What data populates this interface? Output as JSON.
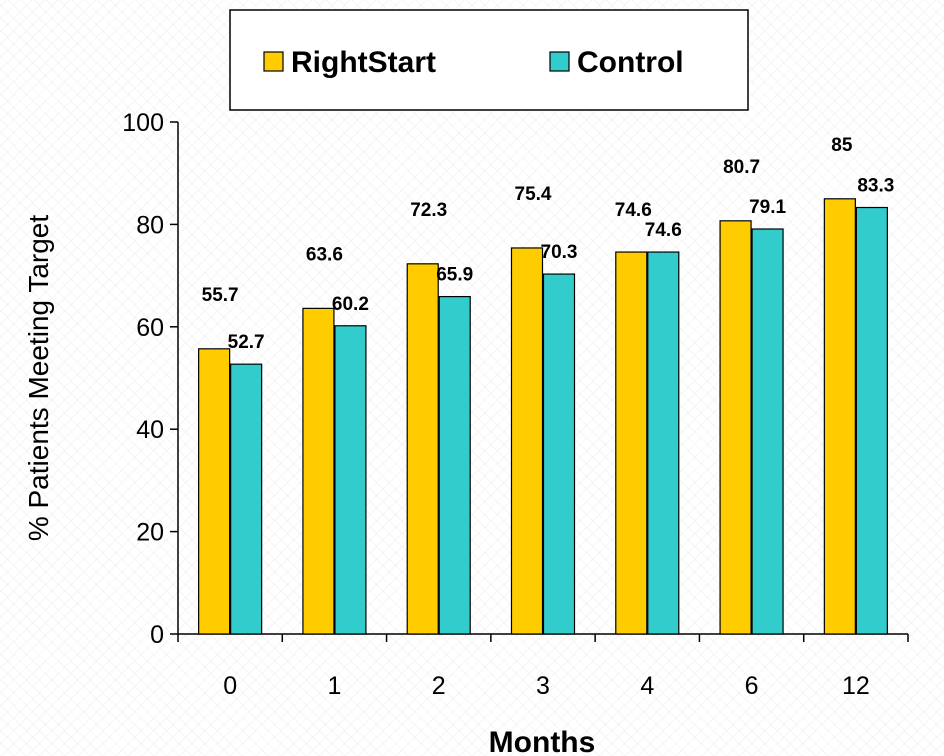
{
  "chart_data": {
    "type": "bar",
    "title": "",
    "xlabel": "Months",
    "ylabel": "% Patients Meeting Target",
    "ylim": [
      0,
      100
    ],
    "yticks": [
      "0",
      "20",
      "40",
      "60",
      "80",
      "100"
    ],
    "categories": [
      "0",
      "1",
      "2",
      "3",
      "4",
      "6",
      "12"
    ],
    "series": [
      {
        "name": "RightStart",
        "color": "#FFCC00",
        "values": [
          55.7,
          63.6,
          72.3,
          75.4,
          74.6,
          80.7,
          85
        ]
      },
      {
        "name": "Control",
        "color": "#33CCCC",
        "values": [
          52.7,
          60.2,
          65.9,
          70.3,
          74.6,
          79.1,
          83.3
        ]
      }
    ],
    "data_labels": [
      [
        "55.7",
        "63.6",
        "72.3",
        "75.4",
        "74.6",
        "80.7",
        "85"
      ],
      [
        "52.7",
        "60.2",
        "65.9",
        "70.3",
        "74.6",
        "79.1",
        "83.3"
      ]
    ],
    "grid": false,
    "legend_position": "top-center"
  }
}
